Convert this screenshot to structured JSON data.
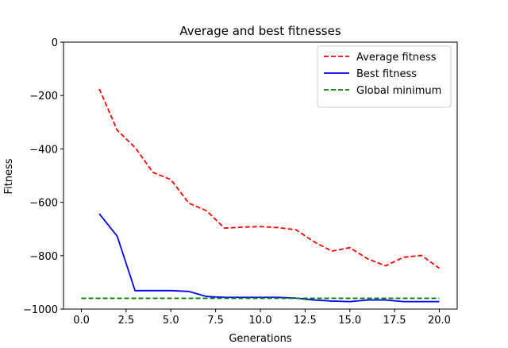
{
  "chart_data": {
    "type": "line",
    "title": "Average and best fitnesses",
    "xlabel": "Generations",
    "ylabel": "Fitness",
    "xlim": [
      -1,
      21
    ],
    "ylim": [
      -1000,
      0
    ],
    "xticks": [
      0.0,
      2.5,
      5.0,
      7.5,
      10.0,
      12.5,
      15.0,
      17.5,
      20.0
    ],
    "xtick_labels": [
      "0.0",
      "2.5",
      "5.0",
      "7.5",
      "10.0",
      "12.5",
      "15.0",
      "17.5",
      "20.0"
    ],
    "yticks": [
      0,
      -200,
      -400,
      -600,
      -800,
      -1000
    ],
    "ytick_labels": [
      "0",
      "−200",
      "−400",
      "−600",
      "−800",
      "−1000"
    ],
    "grid": false,
    "legend_position": "top-right",
    "series": [
      {
        "name": "Average fitness",
        "color": "#ff0000",
        "style": "dashed",
        "x": [
          1,
          2,
          3,
          4,
          5,
          6,
          7,
          8,
          9,
          10,
          11,
          12,
          13,
          14,
          15,
          16,
          17,
          18,
          19,
          20
        ],
        "values": [
          -175,
          -330,
          -395,
          -488,
          -515,
          -603,
          -632,
          -697,
          -693,
          -691,
          -695,
          -703,
          -748,
          -783,
          -770,
          -812,
          -838,
          -806,
          -799,
          -847
        ]
      },
      {
        "name": "Best fitness",
        "color": "#0000ff",
        "style": "solid",
        "x": [
          1,
          2,
          3,
          4,
          5,
          6,
          7,
          8,
          9,
          10,
          11,
          12,
          13,
          14,
          15,
          16,
          17,
          18,
          19,
          20
        ],
        "values": [
          -643,
          -727,
          -931,
          -931,
          -931,
          -934,
          -953,
          -956,
          -956,
          -956,
          -956,
          -959,
          -966,
          -970,
          -972,
          -966,
          -966,
          -972,
          -972,
          -972
        ]
      },
      {
        "name": "Global minimum",
        "color": "#008000",
        "style": "dashed",
        "x": [
          0,
          20
        ],
        "values": [
          -959.6407,
          -959.6407
        ]
      }
    ]
  }
}
